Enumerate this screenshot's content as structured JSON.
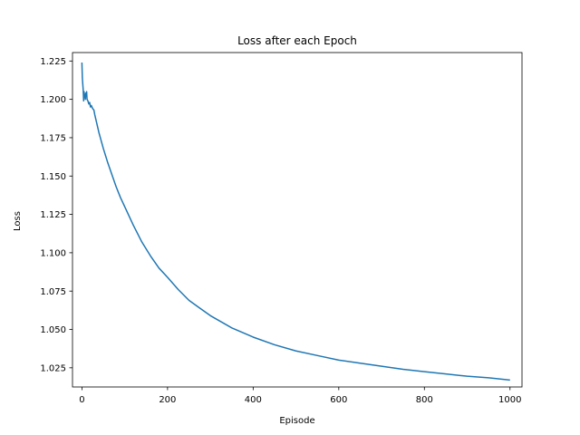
{
  "chart_data": {
    "type": "line",
    "title": "Loss after each Epoch",
    "xlabel": "Episode",
    "ylabel": "Loss",
    "xlim": [
      -22,
      1028
    ],
    "ylim": [
      1.0125,
      1.2305
    ],
    "xticks": [
      0,
      200,
      400,
      600,
      800,
      1000
    ],
    "yticks": [
      1.025,
      1.05,
      1.075,
      1.1,
      1.125,
      1.15,
      1.175,
      1.2,
      1.225
    ],
    "xtick_labels": [
      "0",
      "200",
      "400",
      "600",
      "800",
      "1000"
    ],
    "ytick_labels": [
      "1.025",
      "1.050",
      "1.075",
      "1.100",
      "1.125",
      "1.150",
      "1.175",
      "1.200",
      "1.225"
    ],
    "grid": false,
    "legend": "none",
    "series": [
      {
        "color": "#1f77b4",
        "x": [
          0,
          1,
          2,
          3,
          4,
          5,
          6,
          7,
          8,
          9,
          10,
          11,
          12,
          14,
          16,
          18,
          20,
          22,
          25,
          28,
          30,
          35,
          40,
          45,
          50,
          60,
          70,
          80,
          90,
          100,
          120,
          140,
          160,
          180,
          200,
          225,
          250,
          275,
          300,
          350,
          400,
          450,
          500,
          550,
          600,
          650,
          700,
          750,
          800,
          850,
          900,
          950,
          1000
        ],
        "y": [
          1.224,
          1.214,
          1.21,
          1.206,
          1.199,
          1.205,
          1.202,
          1.203,
          1.2,
          1.204,
          1.202,
          1.205,
          1.2,
          1.199,
          1.197,
          1.198,
          1.195,
          1.196,
          1.194,
          1.193,
          1.19,
          1.184,
          1.178,
          1.173,
          1.168,
          1.159,
          1.151,
          1.143,
          1.136,
          1.13,
          1.118,
          1.107,
          1.098,
          1.09,
          1.084,
          1.076,
          1.069,
          1.064,
          1.059,
          1.051,
          1.045,
          1.04,
          1.036,
          1.033,
          1.03,
          1.028,
          1.026,
          1.024,
          1.0225,
          1.021,
          1.0195,
          1.0185,
          1.017
        ]
      }
    ]
  }
}
